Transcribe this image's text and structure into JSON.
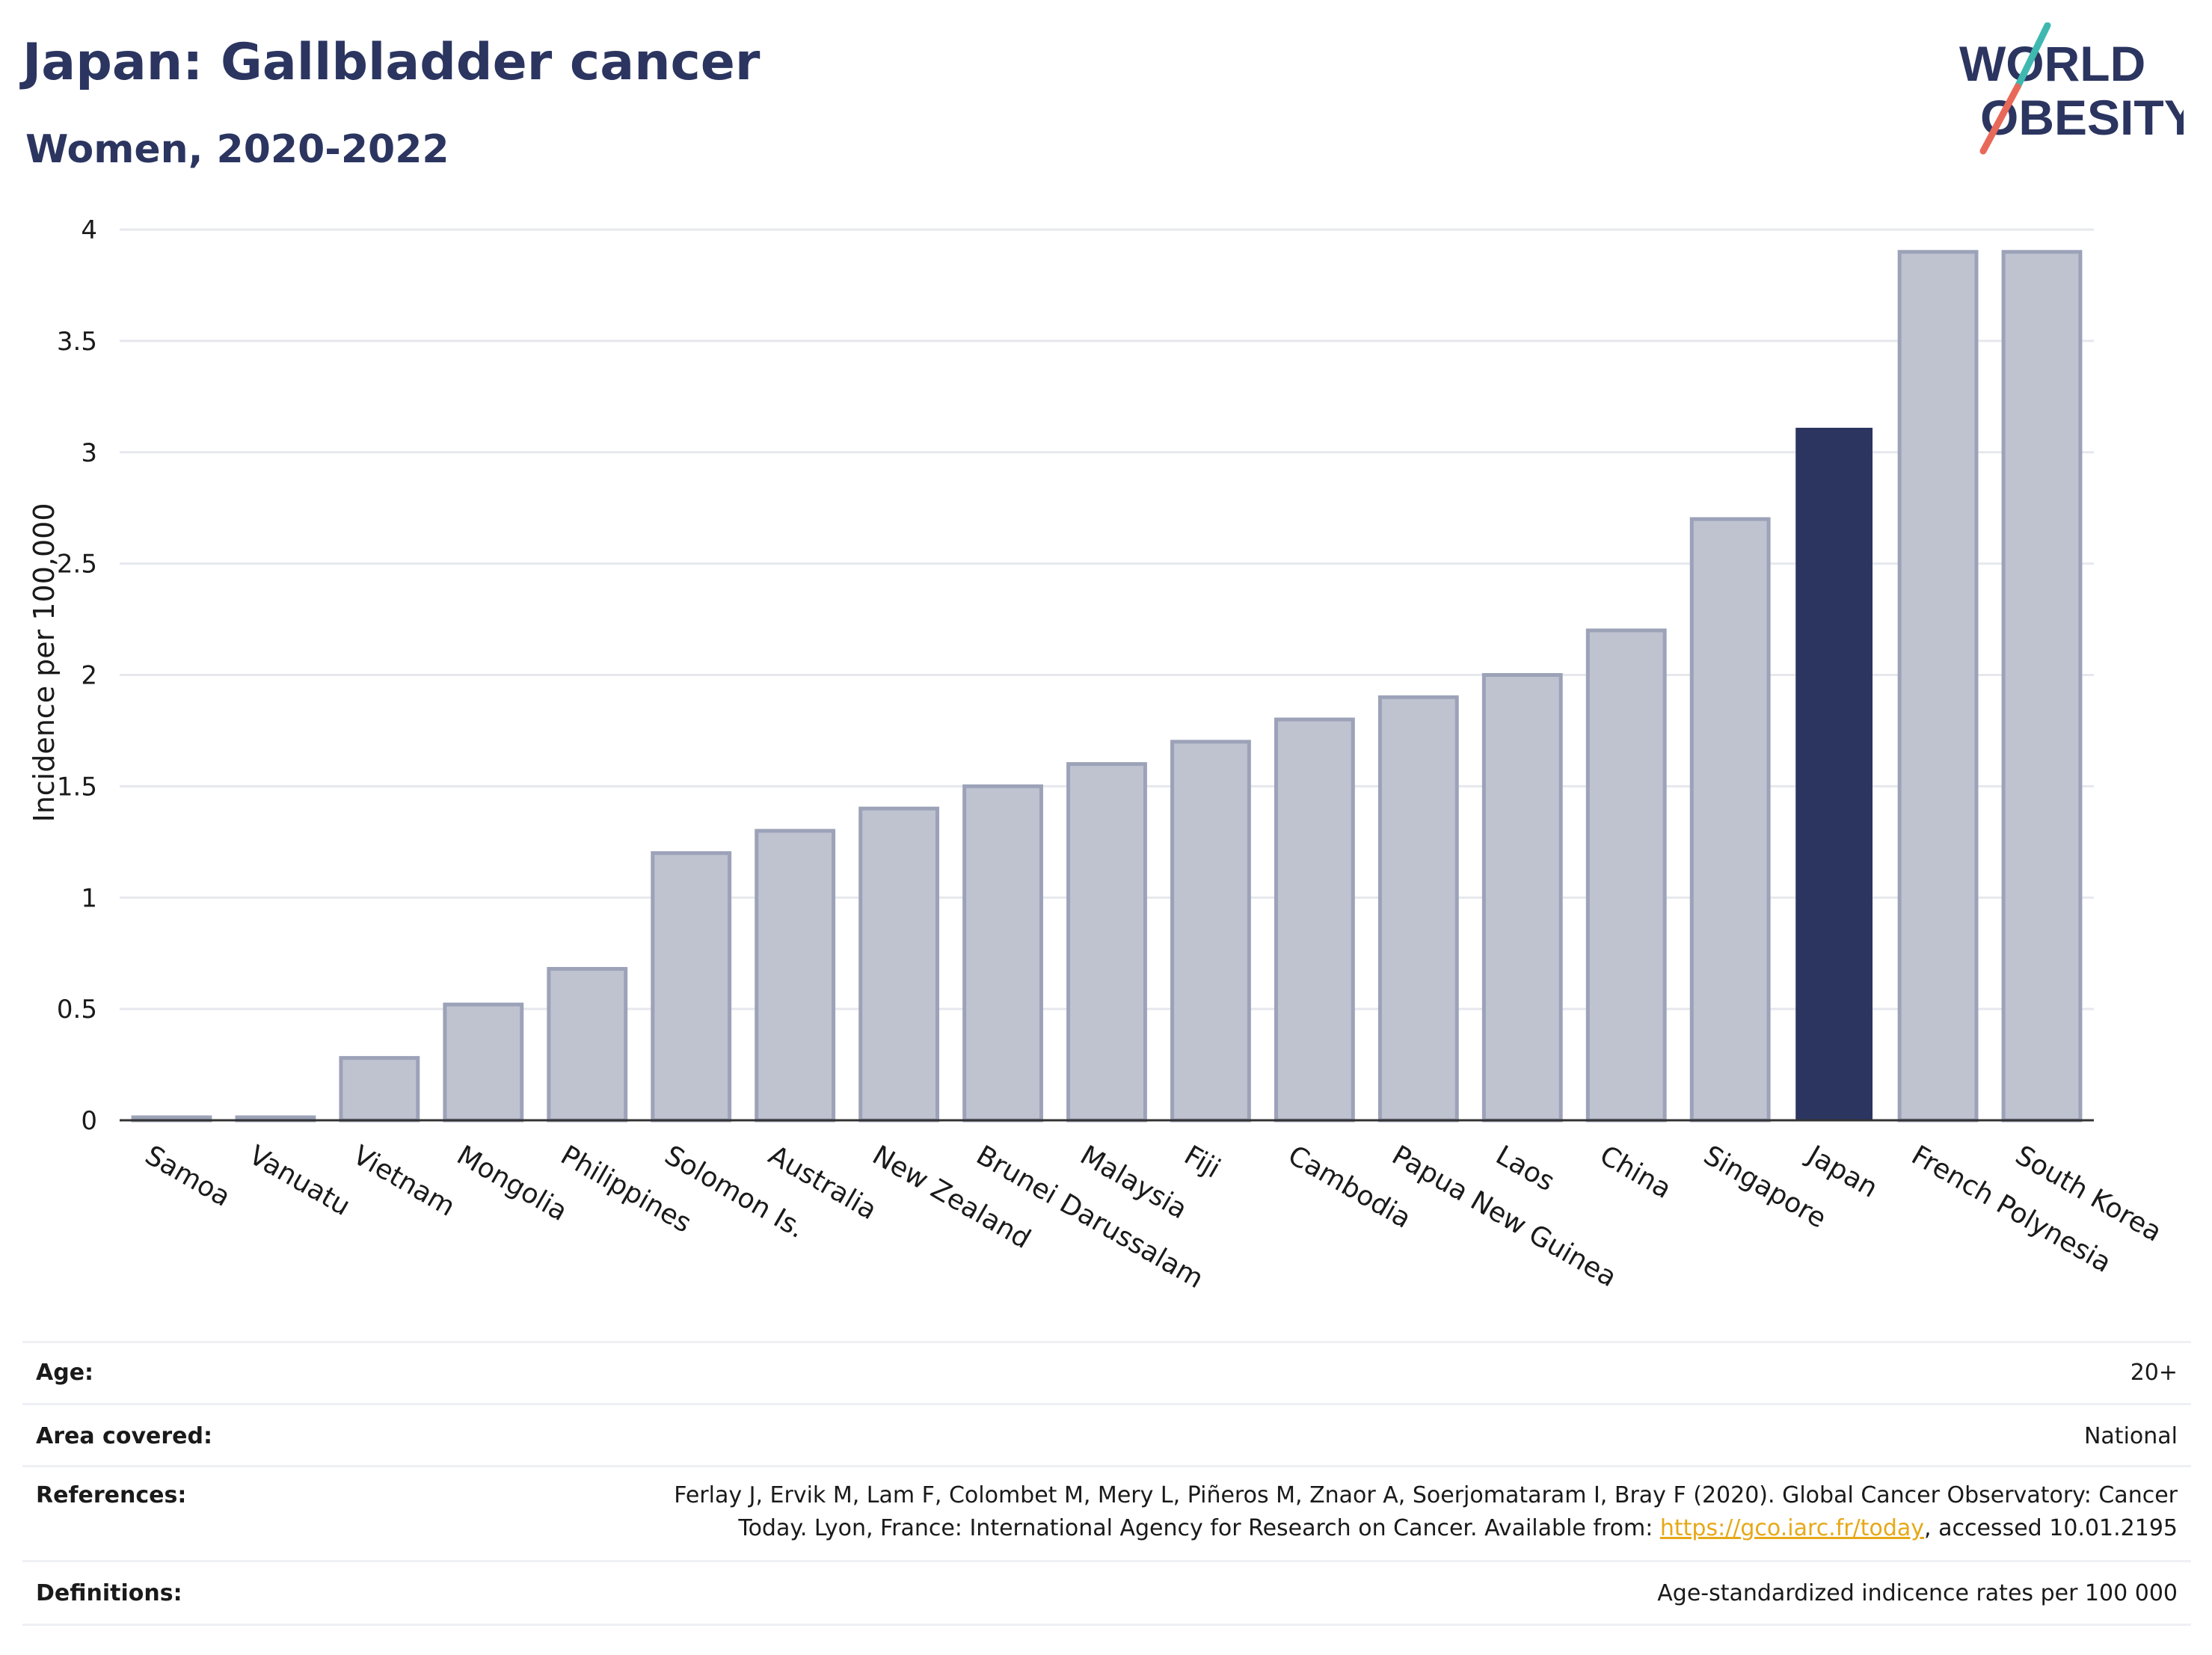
{
  "header": {
    "title": "Japan: Gallbladder cancer",
    "subtitle": "Women, 2020-2022"
  },
  "logo": {
    "line1": "WORLD",
    "line2": "OBESITY",
    "colors": {
      "text": "#2b3560",
      "slash_teal": "#3fb8b0",
      "slash_coral": "#e8695a"
    }
  },
  "chart_data": {
    "type": "bar",
    "title": "Japan: Gallbladder cancer",
    "subtitle": "Women, 2020-2022",
    "xlabel": "",
    "ylabel": "Incidence per 100,000",
    "ylim": [
      0,
      4
    ],
    "yticks": [
      "0",
      "0.5",
      "1",
      "1.5",
      "2",
      "2.5",
      "3",
      "3.5",
      "4"
    ],
    "grid": true,
    "categories": [
      "Samoa",
      "Vanuatu",
      "Vietnam",
      "Mongolia",
      "Philippines",
      "Solomon Is.",
      "Australia",
      "New Zealand",
      "Brunei Darussalam",
      "Malaysia",
      "Fiji",
      "Cambodia",
      "Papua New Guinea",
      "Laos",
      "China",
      "Singapore",
      "Japan",
      "French Polynesia",
      "South Korea"
    ],
    "values": [
      0.01,
      0.01,
      0.28,
      0.52,
      0.68,
      1.2,
      1.3,
      1.4,
      1.5,
      1.6,
      1.7,
      1.8,
      1.9,
      2.0,
      2.2,
      2.7,
      3.11,
      3.9,
      3.9
    ],
    "highlight": "Japan",
    "colors": {
      "bar": "#bfc3d0",
      "bar_edge": "#9ca2b8",
      "highlight": "#2b3560",
      "grid": "#e6e8ee",
      "axis": "#333333"
    }
  },
  "info": {
    "age_label": "Age:",
    "age_value": "20+",
    "area_label": "Area covered:",
    "area_value": "National",
    "references_label": "References:",
    "references_line1": "Ferlay J, Ervik M, Lam F, Colombet M, Mery L, Piñeros M, Znaor A, Soerjomataram I, Bray F (2020). Global Cancer Observatory: Cancer",
    "references_line2_pre": "Today. Lyon, France: International Agency for Research on Cancer. Available from: ",
    "references_link": "https://gco.iarc.fr/today",
    "references_line2_post": ", accessed 10.01.2195",
    "definitions_label": "Definitions:",
    "definitions_value": "Age-standardized indicence rates per 100 000"
  }
}
